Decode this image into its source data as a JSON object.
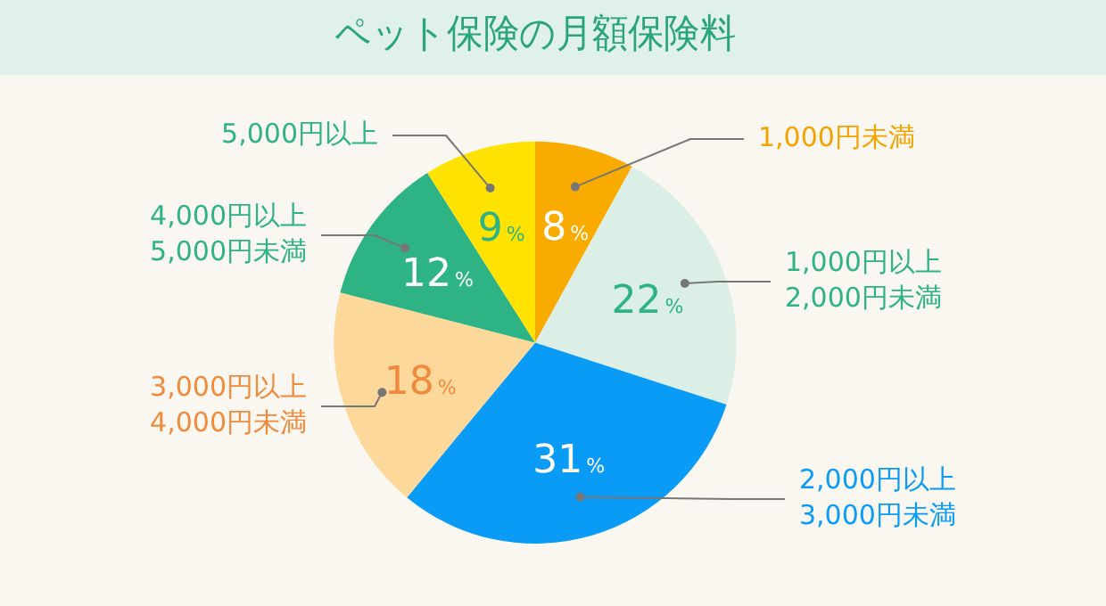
{
  "chart_data": {
    "type": "pie",
    "title": "ペット保険の月額保険料",
    "categories": [
      "1,000円未満",
      "1,000円以上\n2,000円未満",
      "2,000円以上\n3,000円未満",
      "3,000円以上\n4,000円未満",
      "4,000円以上\n5,000円未満",
      "5,000円以上"
    ],
    "values": [
      8,
      22,
      31,
      18,
      12,
      9
    ],
    "colors": [
      "#f9ab00",
      "#dcefe7",
      "#0a9bf6",
      "#fdd89b",
      "#2eb385",
      "#ffe200"
    ],
    "value_labels": [
      "8%",
      "22%",
      "31%",
      "18%",
      "12%",
      "9%"
    ],
    "legend": false
  }
}
